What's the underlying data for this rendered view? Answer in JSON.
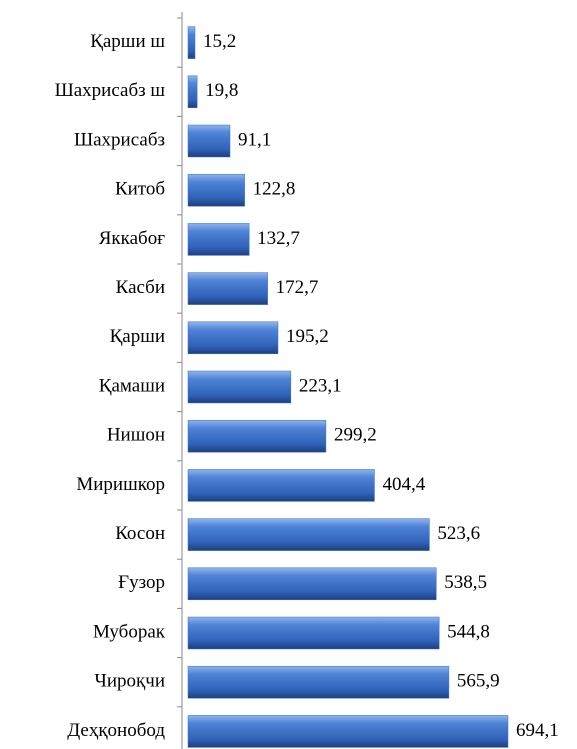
{
  "chart_data": {
    "type": "bar",
    "orientation": "horizontal",
    "categories": [
      "Қарши ш",
      "Шахрисабз ш",
      "Шахрисабз",
      "Китоб",
      "Яккабоғ",
      "Касби",
      "Қарши",
      "Қамаши",
      "Нишон",
      "Миришкор",
      "Косон",
      "Ғузор",
      "Муборак",
      "Чироқчи",
      "Деҳқонобод"
    ],
    "values": [
      15.2,
      19.8,
      91.1,
      122.8,
      132.7,
      172.7,
      195.2,
      223.1,
      299.2,
      404.4,
      523.6,
      538.5,
      544.8,
      565.9,
      694.1
    ],
    "value_labels": [
      "15,2",
      "19,8",
      "91,1",
      "122,8",
      "132,7",
      "172,7",
      "195,2",
      "223,1",
      "299,2",
      "404,4",
      "523,6",
      "538,5",
      "544,8",
      "565,9",
      "694,1"
    ],
    "color": "#3a6fc4"
  }
}
